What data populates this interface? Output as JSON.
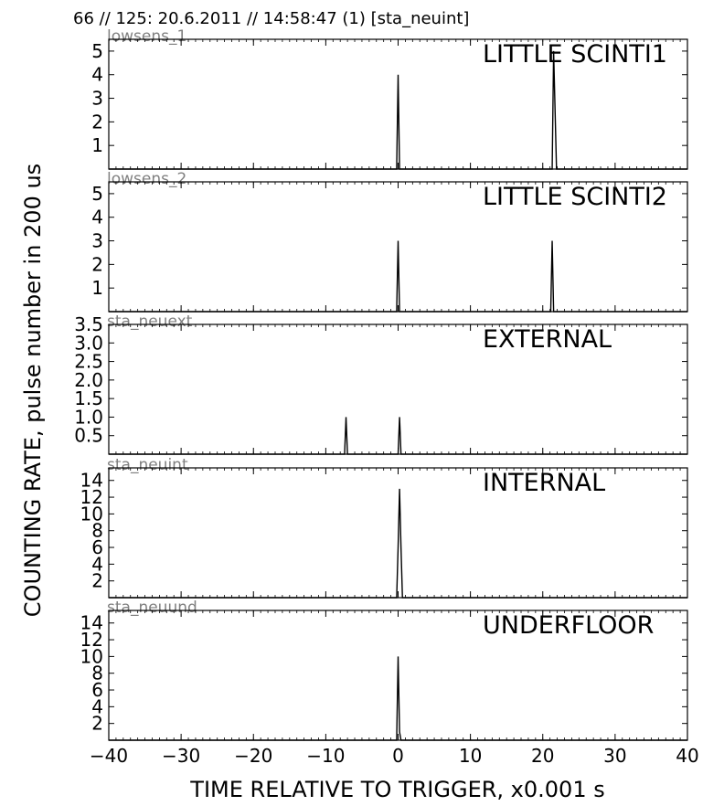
{
  "header": {
    "text": "66 // 125:   20.6.2011 // 14:58:47 (1)  [sta_neuint]"
  },
  "chart_data": [
    {
      "type": "line",
      "channel": "lowsens_1",
      "title": "LITTLE SCINTI1",
      "ylim": [
        0,
        5.5
      ],
      "yticks": [
        1,
        2,
        3,
        4,
        5
      ],
      "ytick_labels": [
        "1",
        "2",
        "3",
        "4",
        "5"
      ],
      "series": [
        {
          "x": [
            -40,
            -0.2,
            0,
            0.2,
            21.3,
            21.5,
            21.9,
            40
          ],
          "y": [
            0,
            0,
            4,
            0,
            0,
            5,
            0,
            0
          ]
        }
      ]
    },
    {
      "type": "line",
      "channel": "lowsens_2",
      "title": "LITTLE SCINTI2",
      "ylim": [
        0,
        5.5
      ],
      "yticks": [
        1,
        2,
        3,
        4,
        5
      ],
      "ytick_labels": [
        "1",
        "2",
        "3",
        "4",
        "5"
      ],
      "series": [
        {
          "x": [
            -40,
            -0.2,
            0,
            0.2,
            21.1,
            21.3,
            21.5,
            40
          ],
          "y": [
            0,
            0,
            3,
            0,
            0,
            3,
            0,
            0
          ]
        }
      ]
    },
    {
      "type": "line",
      "channel": "sta_neuext",
      "title": "EXTERNAL",
      "ylim": [
        0,
        3.5
      ],
      "yticks": [
        0.5,
        1.0,
        1.5,
        2.0,
        2.5,
        3.0,
        3.5
      ],
      "ytick_labels": [
        "0.5",
        "1.0",
        "1.5",
        "2.0",
        "2.5",
        "3.0",
        "3.5"
      ],
      "series": [
        {
          "x": [
            -40,
            -7.4,
            -7.2,
            -7.0,
            0,
            0.2,
            0.4,
            40
          ],
          "y": [
            0,
            0,
            1,
            0,
            0,
            1,
            0,
            0
          ]
        }
      ]
    },
    {
      "type": "line",
      "channel": "sta_neuint",
      "title": "INTERNAL",
      "ylim": [
        0,
        15.5
      ],
      "yticks": [
        2,
        4,
        6,
        8,
        10,
        12,
        14
      ],
      "ytick_labels": [
        "2",
        "4",
        "6",
        "8",
        "10",
        "12",
        "14"
      ],
      "series": [
        {
          "x": [
            -40,
            -0.2,
            0,
            0.2,
            0.4,
            0.6,
            40
          ],
          "y": [
            0,
            0,
            6,
            13,
            6,
            0,
            0
          ]
        }
      ]
    },
    {
      "type": "line",
      "channel": "sta_neuund",
      "title": "UNDERFLOOR",
      "ylim": [
        0,
        15.5
      ],
      "yticks": [
        2,
        4,
        6,
        8,
        10,
        12,
        14
      ],
      "ytick_labels": [
        "2",
        "4",
        "6",
        "8",
        "10",
        "12",
        "14"
      ],
      "series": [
        {
          "x": [
            -40,
            -0.2,
            0,
            0.2,
            0.4,
            40
          ],
          "y": [
            0,
            0,
            10,
            1,
            0,
            0
          ]
        }
      ]
    }
  ],
  "axes": {
    "xlabel": "TIME RELATIVE TO TRIGGER,   x0.001 s",
    "ylabel": "COUNTING RATE,   pulse number in 200 us",
    "xlim": [
      -40,
      40
    ],
    "xticks": [
      -40,
      -30,
      -20,
      -10,
      0,
      10,
      20,
      30,
      40
    ],
    "xtick_labels": [
      "−40",
      "−30",
      "−20",
      "−10",
      "0",
      "10",
      "20",
      "30",
      "40"
    ],
    "grid": false,
    "line_color": "#000000",
    "channel_label_color": "#808080"
  }
}
